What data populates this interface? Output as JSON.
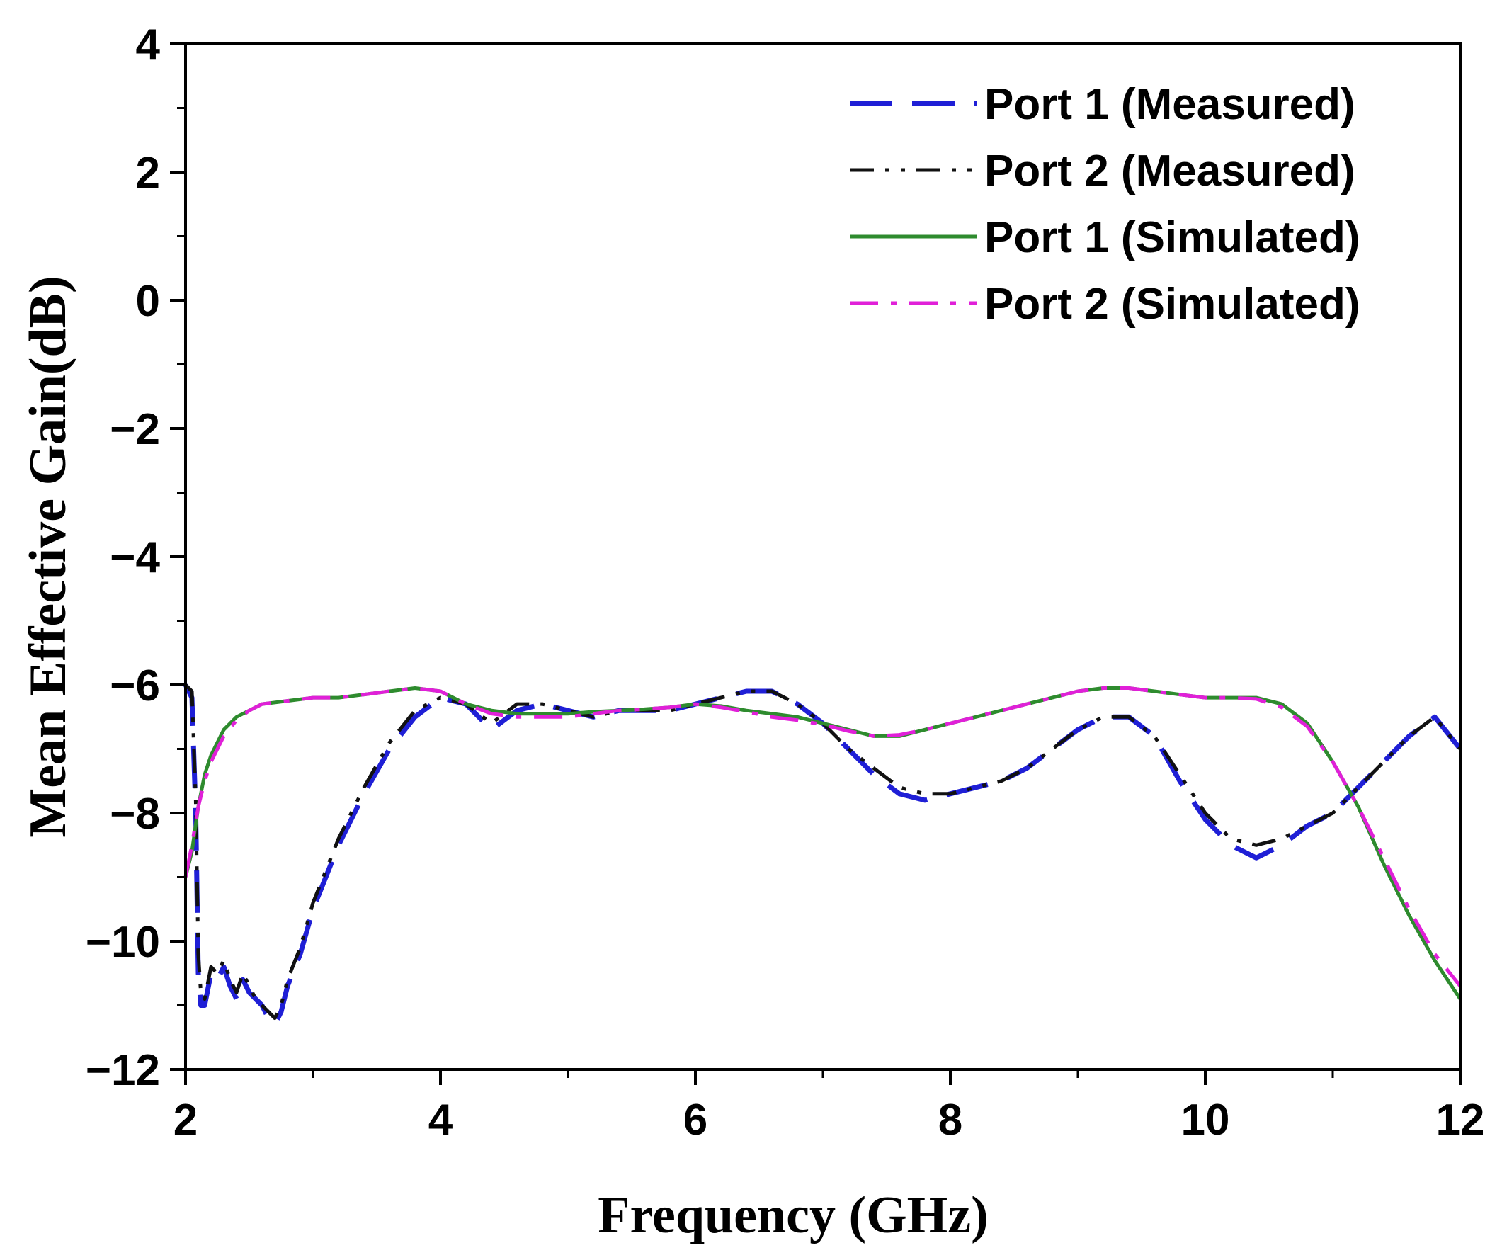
{
  "chart_data": {
    "type": "line",
    "xlabel": "Frequency (GHz)",
    "ylabel": "Mean Effective Gain(dB)",
    "xlim": [
      2,
      12
    ],
    "ylim": [
      -12,
      4
    ],
    "xticks": [
      2,
      4,
      6,
      8,
      10,
      12
    ],
    "yticks": [
      4,
      2,
      0,
      -2,
      -4,
      -6,
      -8,
      -10,
      -12
    ],
    "xtick_labels": [
      "2",
      "4",
      "6",
      "8",
      "10",
      "12"
    ],
    "ytick_labels": [
      "4",
      "2",
      "0",
      "−2",
      "−4",
      "−6",
      "−8",
      "−10",
      "−12"
    ],
    "grid": false,
    "legend_position": "top-right",
    "series": [
      {
        "name": "Port 1 (Measured)",
        "color": "#1f1fd6",
        "style": "long-dash",
        "x": [
          2.0,
          2.05,
          2.08,
          2.1,
          2.12,
          2.15,
          2.2,
          2.25,
          2.3,
          2.35,
          2.4,
          2.45,
          2.5,
          2.55,
          2.6,
          2.65,
          2.7,
          2.75,
          2.8,
          2.9,
          3.0,
          3.2,
          3.4,
          3.6,
          3.8,
          4.0,
          4.2,
          4.4,
          4.6,
          4.8,
          5.0,
          5.2,
          5.4,
          5.6,
          5.8,
          6.0,
          6.2,
          6.4,
          6.6,
          6.8,
          7.0,
          7.2,
          7.4,
          7.6,
          7.8,
          8.0,
          8.2,
          8.4,
          8.6,
          8.8,
          9.0,
          9.2,
          9.4,
          9.6,
          9.8,
          10.0,
          10.2,
          10.4,
          10.6,
          10.8,
          11.0,
          11.2,
          11.4,
          11.6,
          11.8,
          12.0
        ],
        "y": [
          -6.0,
          -6.2,
          -8.0,
          -10.5,
          -11.0,
          -11.0,
          -10.5,
          -10.6,
          -10.4,
          -10.7,
          -10.9,
          -10.6,
          -10.8,
          -10.9,
          -11.0,
          -11.2,
          -11.3,
          -11.1,
          -10.7,
          -10.2,
          -9.5,
          -8.5,
          -7.7,
          -7.0,
          -6.5,
          -6.2,
          -6.3,
          -6.7,
          -6.4,
          -6.3,
          -6.4,
          -6.5,
          -6.4,
          -6.4,
          -6.4,
          -6.3,
          -6.2,
          -6.1,
          -6.1,
          -6.3,
          -6.6,
          -7.0,
          -7.4,
          -7.7,
          -7.8,
          -7.7,
          -7.6,
          -7.5,
          -7.3,
          -7.0,
          -6.7,
          -6.5,
          -6.5,
          -6.8,
          -7.5,
          -8.1,
          -8.5,
          -8.7,
          -8.5,
          -8.2,
          -8.0,
          -7.6,
          -7.2,
          -6.8,
          -6.5,
          -7.0
        ]
      },
      {
        "name": "Port 2 (Measured)",
        "color": "#111111",
        "style": "dash-dot-dot",
        "x": [
          2.0,
          2.05,
          2.08,
          2.1,
          2.12,
          2.15,
          2.2,
          2.25,
          2.3,
          2.35,
          2.4,
          2.45,
          2.5,
          2.55,
          2.6,
          2.65,
          2.7,
          2.75,
          2.8,
          2.9,
          3.0,
          3.2,
          3.4,
          3.6,
          3.8,
          4.0,
          4.2,
          4.4,
          4.6,
          4.8,
          5.0,
          5.2,
          5.4,
          5.6,
          5.8,
          6.0,
          6.2,
          6.4,
          6.6,
          6.8,
          7.0,
          7.2,
          7.4,
          7.6,
          7.8,
          8.0,
          8.2,
          8.4,
          8.6,
          8.8,
          9.0,
          9.2,
          9.4,
          9.6,
          9.8,
          10.0,
          10.2,
          10.4,
          10.6,
          10.8,
          11.0,
          11.2,
          11.4,
          11.6,
          11.8,
          12.0
        ],
        "y": [
          -6.0,
          -6.1,
          -7.8,
          -10.2,
          -10.8,
          -10.9,
          -10.4,
          -10.5,
          -10.3,
          -10.6,
          -10.8,
          -10.5,
          -10.7,
          -10.9,
          -11.0,
          -11.1,
          -11.2,
          -11.0,
          -10.6,
          -10.1,
          -9.4,
          -8.4,
          -7.6,
          -6.9,
          -6.4,
          -6.2,
          -6.3,
          -6.6,
          -6.3,
          -6.3,
          -6.4,
          -6.5,
          -6.4,
          -6.4,
          -6.4,
          -6.3,
          -6.2,
          -6.1,
          -6.1,
          -6.3,
          -6.6,
          -7.0,
          -7.3,
          -7.6,
          -7.7,
          -7.7,
          -7.6,
          -7.5,
          -7.3,
          -7.0,
          -6.7,
          -6.5,
          -6.5,
          -6.8,
          -7.4,
          -8.0,
          -8.4,
          -8.5,
          -8.4,
          -8.2,
          -8.0,
          -7.6,
          -7.2,
          -6.8,
          -6.5,
          -7.0
        ]
      },
      {
        "name": "Port 1 (Simulated)",
        "color": "#2e8b2e",
        "style": "solid",
        "x": [
          2.0,
          2.05,
          2.1,
          2.15,
          2.2,
          2.3,
          2.4,
          2.5,
          2.6,
          2.8,
          3.0,
          3.2,
          3.4,
          3.6,
          3.8,
          4.0,
          4.2,
          4.4,
          4.6,
          4.8,
          5.0,
          5.2,
          5.4,
          5.6,
          5.8,
          6.0,
          6.2,
          6.4,
          6.6,
          6.8,
          7.0,
          7.2,
          7.4,
          7.6,
          7.8,
          8.0,
          8.2,
          8.4,
          8.6,
          8.8,
          9.0,
          9.2,
          9.4,
          9.6,
          9.8,
          10.0,
          10.2,
          10.4,
          10.6,
          10.8,
          11.0,
          11.2,
          11.4,
          11.6,
          11.8,
          12.0
        ],
        "y": [
          -9.0,
          -8.6,
          -7.9,
          -7.4,
          -7.1,
          -6.7,
          -6.5,
          -6.4,
          -6.3,
          -6.25,
          -6.2,
          -6.2,
          -6.15,
          -6.1,
          -6.05,
          -6.1,
          -6.3,
          -6.4,
          -6.45,
          -6.45,
          -6.45,
          -6.42,
          -6.4,
          -6.38,
          -6.35,
          -6.3,
          -6.33,
          -6.4,
          -6.45,
          -6.5,
          -6.6,
          -6.7,
          -6.8,
          -6.8,
          -6.7,
          -6.6,
          -6.5,
          -6.4,
          -6.3,
          -6.2,
          -6.1,
          -6.05,
          -6.05,
          -6.1,
          -6.15,
          -6.2,
          -6.2,
          -6.2,
          -6.3,
          -6.6,
          -7.2,
          -7.9,
          -8.8,
          -9.6,
          -10.3,
          -10.9
        ]
      },
      {
        "name": "Port 2 (Simulated)",
        "color": "#e020d8",
        "style": "dash-dot",
        "x": [
          2.0,
          2.05,
          2.1,
          2.15,
          2.2,
          2.3,
          2.4,
          2.5,
          2.6,
          2.8,
          3.0,
          3.2,
          3.4,
          3.6,
          3.8,
          4.0,
          4.2,
          4.4,
          4.6,
          4.8,
          5.0,
          5.2,
          5.4,
          5.6,
          5.8,
          6.0,
          6.2,
          6.4,
          6.6,
          6.8,
          7.0,
          7.2,
          7.4,
          7.6,
          7.8,
          8.0,
          8.2,
          8.4,
          8.6,
          8.8,
          9.0,
          9.2,
          9.4,
          9.6,
          9.8,
          10.0,
          10.2,
          10.4,
          10.6,
          10.8,
          11.0,
          11.2,
          11.4,
          11.6,
          11.8,
          12.0
        ],
        "y": [
          -9.0,
          -8.5,
          -7.9,
          -7.5,
          -7.2,
          -6.8,
          -6.55,
          -6.4,
          -6.3,
          -6.25,
          -6.2,
          -6.2,
          -6.15,
          -6.1,
          -6.05,
          -6.1,
          -6.3,
          -6.45,
          -6.5,
          -6.5,
          -6.5,
          -6.45,
          -6.4,
          -6.38,
          -6.35,
          -6.3,
          -6.35,
          -6.42,
          -6.5,
          -6.55,
          -6.62,
          -6.72,
          -6.8,
          -6.78,
          -6.7,
          -6.6,
          -6.5,
          -6.4,
          -6.3,
          -6.2,
          -6.1,
          -6.05,
          -6.05,
          -6.1,
          -6.15,
          -6.2,
          -6.2,
          -6.22,
          -6.35,
          -6.65,
          -7.2,
          -7.9,
          -8.7,
          -9.5,
          -10.2,
          -10.7
        ]
      }
    ]
  }
}
